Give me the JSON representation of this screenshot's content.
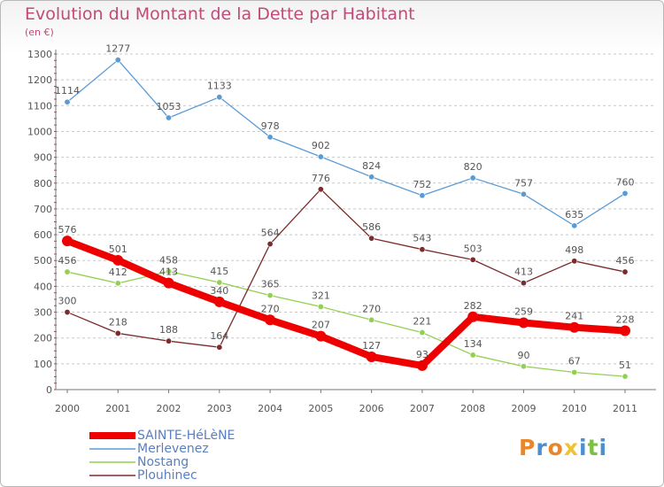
{
  "title": "Evolution du Montant de la Dette par Habitant",
  "unit_label": "(en €)",
  "logo": {
    "text": "Proxiti",
    "letters": [
      "P",
      "r",
      "o",
      "x",
      "i",
      "t",
      "i"
    ],
    "colors": [
      "#e8862b",
      "#4a8fd1",
      "#e8862b",
      "#f1c232",
      "#4a8fd1",
      "#7ac142",
      "#4a8fd1"
    ]
  },
  "chart_data": {
    "type": "line",
    "x": [
      "2000",
      "2001",
      "2002",
      "2003",
      "2004",
      "2005",
      "2006",
      "2007",
      "2008",
      "2009",
      "2010",
      "2011"
    ],
    "ylim": [
      0,
      1300
    ],
    "yticks": [
      0,
      100,
      200,
      300,
      400,
      500,
      600,
      700,
      800,
      900,
      1000,
      1100,
      1200,
      1300
    ],
    "grid": "horizontal dashed",
    "legend_position": "bottom-left",
    "series": [
      {
        "name": "SAINTE-HéLèNE",
        "color": "#ee0000",
        "values": [
          576,
          501,
          413,
          340,
          270,
          207,
          127,
          93,
          282,
          259,
          241,
          228
        ]
      },
      {
        "name": "Merlevenez",
        "color": "#5b9bd5",
        "values": [
          1114,
          1277,
          1053,
          1133,
          978,
          902,
          824,
          752,
          820,
          757,
          635,
          760
        ]
      },
      {
        "name": "Nostang",
        "color": "#92d050",
        "values": [
          456,
          412,
          458,
          415,
          365,
          321,
          270,
          221,
          134,
          90,
          67,
          51
        ]
      },
      {
        "name": "Plouhinec",
        "color": "#7b2c2c",
        "values": [
          300,
          218,
          188,
          164,
          564,
          776,
          586,
          543,
          503,
          413,
          498,
          456
        ]
      }
    ]
  }
}
